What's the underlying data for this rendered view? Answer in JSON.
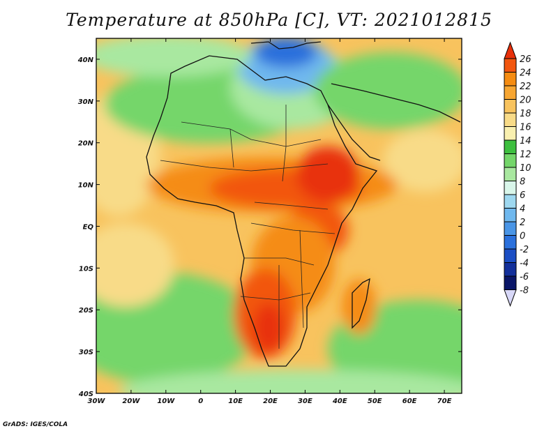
{
  "title": "Temperature at 850hPa [C], VT: 2021012815",
  "credit": "GrADS: IGES/COLA",
  "map": {
    "projection": "lat-lon",
    "lon_range": [
      -30,
      75
    ],
    "lat_range": [
      -40,
      45
    ],
    "lat_labels": [
      "40N",
      "30N",
      "20N",
      "10N",
      "EQ",
      "10S",
      "20S",
      "30S",
      "40S"
    ],
    "lon_labels": [
      "30W",
      "20W",
      "10W",
      "0",
      "10E",
      "20E",
      "30E",
      "40E",
      "50E",
      "60E",
      "70E"
    ]
  },
  "colorbar": {
    "levels": [
      "26",
      "24",
      "22",
      "20",
      "18",
      "16",
      "14",
      "12",
      "10",
      "8",
      "6",
      "4",
      "2",
      "0",
      "-2",
      "-4",
      "-6",
      "-8"
    ],
    "colors": [
      "#e8300a",
      "#f2560f",
      "#f58c12",
      "#f7a632",
      "#f8c35e",
      "#f8db88",
      "#f9f0b0",
      "#3dbf3f",
      "#74d66a",
      "#a9e8a0",
      "#d9f6ea",
      "#9ed8f0",
      "#6fb8ee",
      "#4995e6",
      "#2a70dc",
      "#1b4ec4",
      "#13309b",
      "#0a1668",
      "#d8d8f8"
    ]
  }
}
